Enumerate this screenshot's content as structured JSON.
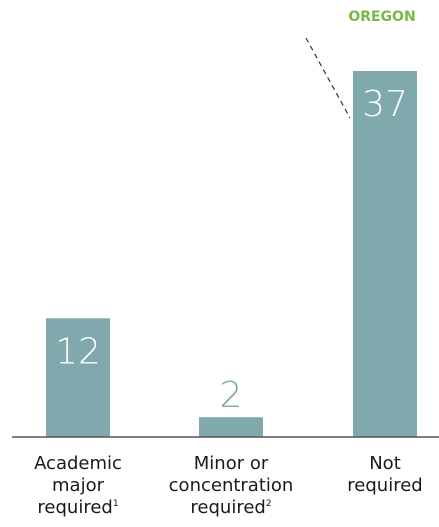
{
  "chart_data": {
    "type": "bar",
    "categories": [
      {
        "lines": [
          "Academic",
          "major",
          "required"
        ],
        "footnote": "1"
      },
      {
        "lines": [
          "Minor or",
          "concentration",
          "required"
        ],
        "footnote": "2"
      },
      {
        "lines": [
          "Not",
          "required"
        ],
        "footnote": ""
      }
    ],
    "values": [
      12,
      2,
      37
    ],
    "ylim": [
      0,
      37
    ],
    "grid": false,
    "annotation": {
      "text": "OREGON",
      "category_index": 2
    },
    "colors": {
      "bar": "#7fa9ac",
      "inside_label": "#ffffff",
      "outside_label": "#7fa9ac",
      "annotation": "#7ab648",
      "baseline": "#555555",
      "leader": "#333333"
    }
  }
}
